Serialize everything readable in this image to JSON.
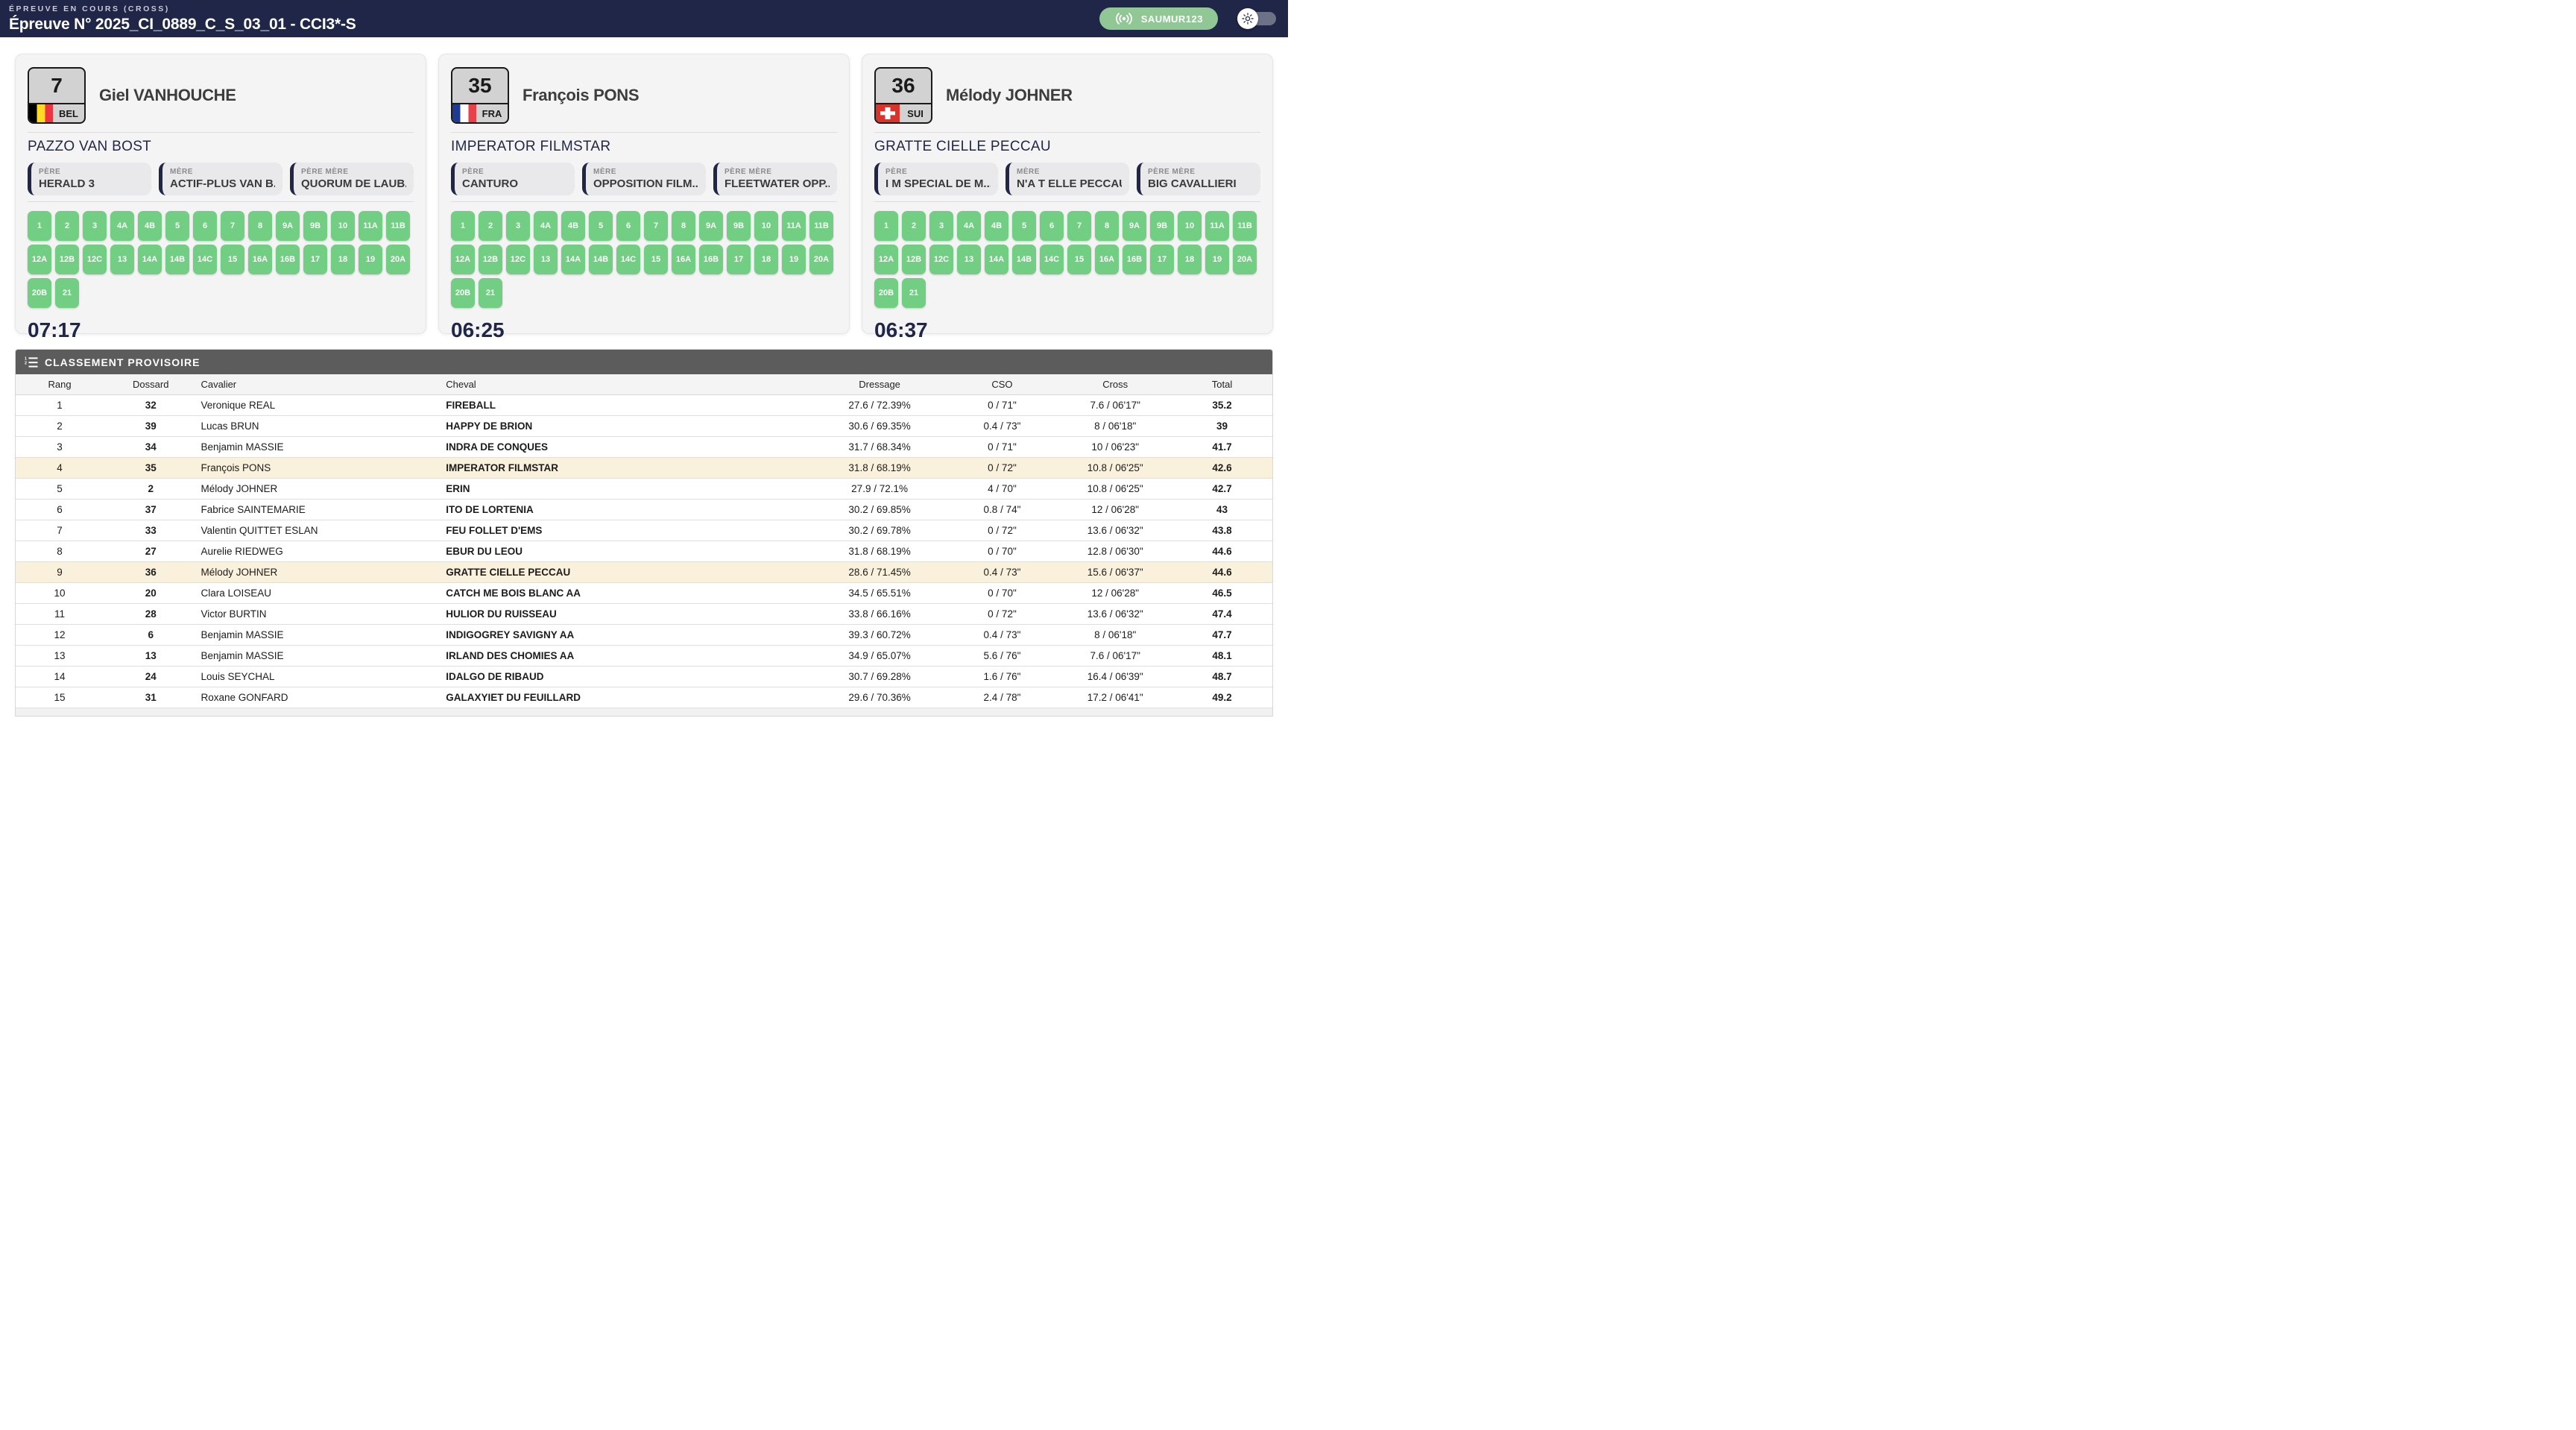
{
  "header": {
    "label": "ÉPREUVE EN COURS (CROSS)",
    "title": "Épreuve N° 2025_CI_0889_C_S_03_01 - CCI3*-S",
    "badge": "SAUMUR123"
  },
  "colors": {
    "navy": "#1f2647",
    "green-badge": "#90c795",
    "green-fence": "#71ce82",
    "card-bg": "#f4f4f5",
    "ped-bg": "#e9e9eb",
    "hl": "#faf1dd",
    "sec-gray": "#5c5c5c"
  },
  "icons": {
    "badge": "broadcast-icon",
    "theme_toggle": "sun-icon",
    "ranking_header": "numbered-list-icon"
  },
  "fences": [
    "1",
    "2",
    "3",
    "4A",
    "4B",
    "5",
    "6",
    "7",
    "8",
    "9A",
    "9B",
    "10",
    "11A",
    "11B",
    "12A",
    "12B",
    "12C",
    "13",
    "14A",
    "14B",
    "14C",
    "15",
    "16A",
    "16B",
    "17",
    "18",
    "19",
    "20A",
    "20B",
    "21"
  ],
  "cards": [
    {
      "bib": "7",
      "country": "BEL",
      "flag": "bel",
      "rider": "Giel VANHOUCHE",
      "horse": "PAZZO VAN BOST",
      "pedigree": [
        {
          "label": "PÈRE",
          "value": "HERALD 3"
        },
        {
          "label": "MÈRE",
          "value": "ACTIF-PLUS VAN B..."
        },
        {
          "label": "PÈRE MÈRE",
          "value": "QUORUM DE LAUB..."
        }
      ],
      "time": "07:17"
    },
    {
      "bib": "35",
      "country": "FRA",
      "flag": "fra",
      "rider": "François PONS",
      "horse": "IMPERATOR FILMSTAR",
      "pedigree": [
        {
          "label": "PÈRE",
          "value": "CANTURO"
        },
        {
          "label": "MÈRE",
          "value": "OPPOSITION FILM..."
        },
        {
          "label": "PÈRE MÈRE",
          "value": "FLEETWATER OPP..."
        }
      ],
      "time": "06:25"
    },
    {
      "bib": "36",
      "country": "SUI",
      "flag": "sui",
      "rider": "Mélody JOHNER",
      "horse": "GRATTE CIELLE PECCAU",
      "pedigree": [
        {
          "label": "PÈRE",
          "value": "I M SPECIAL DE M..."
        },
        {
          "label": "MÈRE",
          "value": "N'A T ELLE PECCAU"
        },
        {
          "label": "PÈRE MÈRE",
          "value": "BIG CAVALLIERI"
        }
      ],
      "time": "06:37"
    }
  ],
  "ranking": {
    "title": "CLASSEMENT PROVISOIRE",
    "columns": [
      "Rang",
      "Dossard",
      "Cavalier",
      "Cheval",
      "Dressage",
      "CSO",
      "Cross",
      "Total"
    ],
    "rows": [
      {
        "rang": "1",
        "dossard": "32",
        "cavalier": "Veronique REAL",
        "cheval": "FIREBALL",
        "dressage": "27.6 / 72.39%",
        "cso": "0 / 71\"",
        "cross": "7.6 / 06'17\"",
        "total": "35.2",
        "highlight": false
      },
      {
        "rang": "2",
        "dossard": "39",
        "cavalier": "Lucas BRUN",
        "cheval": "HAPPY DE BRION",
        "dressage": "30.6 / 69.35%",
        "cso": "0.4 / 73\"",
        "cross": "8 / 06'18\"",
        "total": "39",
        "highlight": false
      },
      {
        "rang": "3",
        "dossard": "34",
        "cavalier": "Benjamin MASSIE",
        "cheval": "INDRA DE CONQUES",
        "dressage": "31.7 / 68.34%",
        "cso": "0 / 71\"",
        "cross": "10 / 06'23\"",
        "total": "41.7",
        "highlight": false
      },
      {
        "rang": "4",
        "dossard": "35",
        "cavalier": "François PONS",
        "cheval": "IMPERATOR FILMSTAR",
        "dressage": "31.8 / 68.19%",
        "cso": "0 / 72\"",
        "cross": "10.8 / 06'25\"",
        "total": "42.6",
        "highlight": true
      },
      {
        "rang": "5",
        "dossard": "2",
        "cavalier": "Mélody JOHNER",
        "cheval": "ERIN",
        "dressage": "27.9 / 72.1%",
        "cso": "4 / 70\"",
        "cross": "10.8 / 06'25\"",
        "total": "42.7",
        "highlight": false
      },
      {
        "rang": "6",
        "dossard": "37",
        "cavalier": "Fabrice SAINTEMARIE",
        "cheval": "ITO DE LORTENIA",
        "dressage": "30.2 / 69.85%",
        "cso": "0.8 / 74\"",
        "cross": "12 / 06'28\"",
        "total": "43",
        "highlight": false
      },
      {
        "rang": "7",
        "dossard": "33",
        "cavalier": "Valentin QUITTET ESLAN",
        "cheval": "FEU FOLLET D'EMS",
        "dressage": "30.2 / 69.78%",
        "cso": "0 / 72\"",
        "cross": "13.6 / 06'32\"",
        "total": "43.8",
        "highlight": false
      },
      {
        "rang": "8",
        "dossard": "27",
        "cavalier": "Aurelie RIEDWEG",
        "cheval": "EBUR DU LEOU",
        "dressage": "31.8 / 68.19%",
        "cso": "0 / 70\"",
        "cross": "12.8 / 06'30\"",
        "total": "44.6",
        "highlight": false
      },
      {
        "rang": "9",
        "dossard": "36",
        "cavalier": "Mélody JOHNER",
        "cheval": "GRATTE CIELLE PECCAU",
        "dressage": "28.6 / 71.45%",
        "cso": "0.4 / 73\"",
        "cross": "15.6 / 06'37\"",
        "total": "44.6",
        "highlight": true
      },
      {
        "rang": "10",
        "dossard": "20",
        "cavalier": "Clara LOISEAU",
        "cheval": "CATCH ME BOIS BLANC AA",
        "dressage": "34.5 / 65.51%",
        "cso": "0 / 70\"",
        "cross": "12 / 06'28\"",
        "total": "46.5",
        "highlight": false
      },
      {
        "rang": "11",
        "dossard": "28",
        "cavalier": "Victor BURTIN",
        "cheval": "HULIOR DU RUISSEAU",
        "dressage": "33.8 / 66.16%",
        "cso": "0 / 72\"",
        "cross": "13.6 / 06'32\"",
        "total": "47.4",
        "highlight": false
      },
      {
        "rang": "12",
        "dossard": "6",
        "cavalier": "Benjamin MASSIE",
        "cheval": "INDIGOGREY SAVIGNY AA",
        "dressage": "39.3 / 60.72%",
        "cso": "0.4 / 73\"",
        "cross": "8 / 06'18\"",
        "total": "47.7",
        "highlight": false
      },
      {
        "rang": "13",
        "dossard": "13",
        "cavalier": "Benjamin MASSIE",
        "cheval": "IRLAND DES CHOMIES AA",
        "dressage": "34.9 / 65.07%",
        "cso": "5.6 / 76\"",
        "cross": "7.6 / 06'17\"",
        "total": "48.1",
        "highlight": false
      },
      {
        "rang": "14",
        "dossard": "24",
        "cavalier": "Louis SEYCHAL",
        "cheval": "IDALGO DE RIBAUD",
        "dressage": "30.7 / 69.28%",
        "cso": "1.6 / 76\"",
        "cross": "16.4 / 06'39\"",
        "total": "48.7",
        "highlight": false
      },
      {
        "rang": "15",
        "dossard": "31",
        "cavalier": "Roxane GONFARD",
        "cheval": "GALAXYIET DU FEUILLARD",
        "dressage": "29.6 / 70.36%",
        "cso": "2.4 / 78\"",
        "cross": "17.2 / 06'41\"",
        "total": "49.2",
        "highlight": false
      }
    ]
  }
}
